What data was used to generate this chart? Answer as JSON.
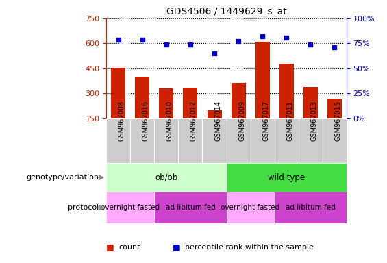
{
  "title": "GDS4506 / 1449629_s_at",
  "samples": [
    "GSM967008",
    "GSM967016",
    "GSM967010",
    "GSM967012",
    "GSM967014",
    "GSM967009",
    "GSM967017",
    "GSM967011",
    "GSM967013",
    "GSM967015"
  ],
  "counts": [
    455,
    400,
    330,
    335,
    200,
    365,
    610,
    480,
    340,
    270
  ],
  "percentiles": [
    79,
    79,
    74,
    74,
    65,
    77,
    82,
    81,
    74,
    71
  ],
  "ylim_left": [
    150,
    750
  ],
  "ylim_right": [
    0,
    100
  ],
  "yticks_left": [
    150,
    300,
    450,
    600,
    750
  ],
  "yticks_right": [
    0,
    25,
    50,
    75,
    100
  ],
  "bar_color": "#cc2200",
  "dot_color": "#0000cc",
  "grid_color": "black",
  "bar_width": 0.6,
  "genotype_groups": [
    {
      "label": "ob/ob",
      "start": 0,
      "end": 5,
      "color": "#ccffcc"
    },
    {
      "label": "wild type",
      "start": 5,
      "end": 10,
      "color": "#44dd44"
    }
  ],
  "protocol_groups": [
    {
      "label": "overnight fasted",
      "start": 0,
      "end": 2,
      "color": "#ffaaff"
    },
    {
      "label": "ad libitum fed",
      "start": 2,
      "end": 5,
      "color": "#cc44cc"
    },
    {
      "label": "overnight fasted",
      "start": 5,
      "end": 7,
      "color": "#ffaaff"
    },
    {
      "label": "ad libitum fed",
      "start": 7,
      "end": 10,
      "color": "#cc44cc"
    }
  ],
  "legend_items": [
    {
      "label": "count",
      "color": "#cc2200"
    },
    {
      "label": "percentile rank within the sample",
      "color": "#0000cc"
    }
  ],
  "left_axis_color": "#cc2200",
  "right_axis_color": "#0000cc",
  "tick_bg_color": "#cccccc",
  "geno_label": "genotype/variation",
  "prot_label": "protocol"
}
